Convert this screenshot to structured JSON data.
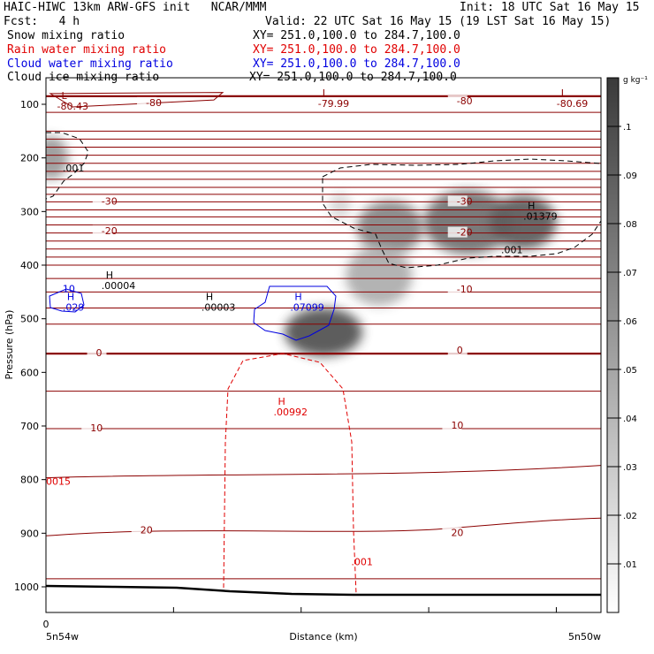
{
  "header": {
    "title": "HAIC-HIWC 13km ARW-GFS init   NCAR/MMM",
    "init": "Init: 18 UTC Sat 16 May 15",
    "fcst": "Fcst:   4 h",
    "valid": "Valid: 22 UTC Sat 16 May 15 (19 LST Sat 16 May 15)"
  },
  "fields": [
    {
      "name": "Snow mixing ratio",
      "xy": "XY= 251.0,100.0 to 284.7,100.0",
      "color": "#000000"
    },
    {
      "name": "Rain water mixing ratio",
      "xy": "XY= 251.0,100.0 to 284.7,100.0",
      "color": "#e00000"
    },
    {
      "name": "Cloud water mixing ratio",
      "xy": "XY= 251.0,100.0 to 284.7,100.0",
      "color": "#0000e0"
    },
    {
      "name": "Cloud ice mixing ratio",
      "xy": "XY= 251.0,100.0 to 284.7,100.0",
      "color": "#000000"
    }
  ],
  "chart_data": {
    "type": "heatmap",
    "xlabel": "Distance (km)",
    "ylabel": "Pressure (hPa)",
    "x_start_label": "5n54w",
    "x_end_label": "5n50w",
    "x_origin_label": "0",
    "y_ticks": [
      100,
      200,
      300,
      400,
      500,
      600,
      700,
      800,
      900,
      1000
    ],
    "ylim": [
      1050,
      50
    ],
    "colorbar": {
      "unit": "g kg⁻¹",
      "levels": [
        ".01",
        ".02",
        ".03",
        ".04",
        ".05",
        ".06",
        ".07",
        ".08",
        ".09",
        ".1"
      ]
    },
    "temperature_labels": [
      {
        "text": "-80",
        "x": 0.18,
        "p": 98
      },
      {
        "text": "-80",
        "x": 0.74,
        "p": 95
      },
      {
        "text": "-30",
        "x": 0.1,
        "p": 282
      },
      {
        "text": "-30",
        "x": 0.74,
        "p": 282
      },
      {
        "text": "-20",
        "x": 0.1,
        "p": 337
      },
      {
        "text": "-20",
        "x": 0.74,
        "p": 340
      },
      {
        "text": "-10",
        "x": 0.74,
        "p": 446
      },
      {
        "text": "0",
        "x": 0.09,
        "p": 565
      },
      {
        "text": "0",
        "x": 0.74,
        "p": 560
      },
      {
        "text": "10",
        "x": 0.08,
        "p": 705
      },
      {
        "text": "10",
        "x": 0.73,
        "p": 700
      },
      {
        "text": "20",
        "x": 0.17,
        "p": 895
      },
      {
        "text": "20",
        "x": 0.73,
        "p": 900
      }
    ],
    "extrema": [
      {
        "type": "L",
        "value": "-80.43",
        "x": 0.02,
        "p": 95,
        "color": "#8b0000"
      },
      {
        "type": "L",
        "value": "-79.99",
        "x": 0.49,
        "p": 90,
        "color": "#8b0000"
      },
      {
        "type": "L",
        "value": "-80.69",
        "x": 0.92,
        "p": 90,
        "color": "#8b0000"
      },
      {
        "type": "H",
        "value": ".01379",
        "x": 0.86,
        "p": 300,
        "color": "#000000"
      },
      {
        "type": "H",
        "value": ".00004",
        "x": 0.1,
        "p": 430,
        "color": "#000000"
      },
      {
        "type": "H",
        "value": ".00003",
        "x": 0.28,
        "p": 470,
        "color": "#000000"
      },
      {
        "type": "H",
        "value": ".07099",
        "x": 0.44,
        "p": 470,
        "color": "#0000e0"
      },
      {
        "type": "H",
        "value": ".029",
        "x": 0.03,
        "p": 470,
        "color": "#0000e0"
      },
      {
        "type": "H",
        "value": ".00992",
        "x": 0.41,
        "p": 665,
        "color": "#e00000"
      }
    ],
    "contour_value_labels": [
      {
        "text": ".001",
        "x": 0.03,
        "p": 225,
        "color": "#000000"
      },
      {
        "text": ".001",
        "x": 0.82,
        "p": 378,
        "color": "#000000"
      },
      {
        "text": ".001",
        "x": 0.55,
        "p": 960,
        "color": "#e00000"
      },
      {
        "text": "0015",
        "x": 0.0,
        "p": 810,
        "color": "#e00000"
      },
      {
        "text": "10",
        "x": 0.03,
        "p": 450,
        "color": "#0000e0"
      }
    ],
    "isotherm_pressures": [
      85,
      115,
      150,
      165,
      180,
      195,
      210,
      225,
      240,
      255,
      268,
      282,
      297,
      310,
      325,
      340,
      355,
      370,
      385,
      400,
      425,
      450,
      480,
      510,
      565,
      635,
      705,
      790,
      895,
      985
    ],
    "shading_blobs": [
      {
        "x": 0.5,
        "p": 525,
        "sx": 0.07,
        "sp": 45,
        "q": 0.085
      },
      {
        "x": 0.62,
        "p": 330,
        "sx": 0.06,
        "sp": 50,
        "q": 0.06
      },
      {
        "x": 0.76,
        "p": 320,
        "sx": 0.08,
        "sp": 60,
        "q": 0.07
      },
      {
        "x": 0.86,
        "p": 320,
        "sx": 0.06,
        "sp": 50,
        "q": 0.08
      },
      {
        "x": 0.6,
        "p": 420,
        "sx": 0.06,
        "sp": 55,
        "q": 0.04
      },
      {
        "x": 0.01,
        "p": 200,
        "sx": 0.03,
        "sp": 40,
        "q": 0.05
      },
      {
        "x": 0.53,
        "p": 290,
        "sx": 0.02,
        "sp": 25,
        "q": 0.02
      }
    ]
  }
}
